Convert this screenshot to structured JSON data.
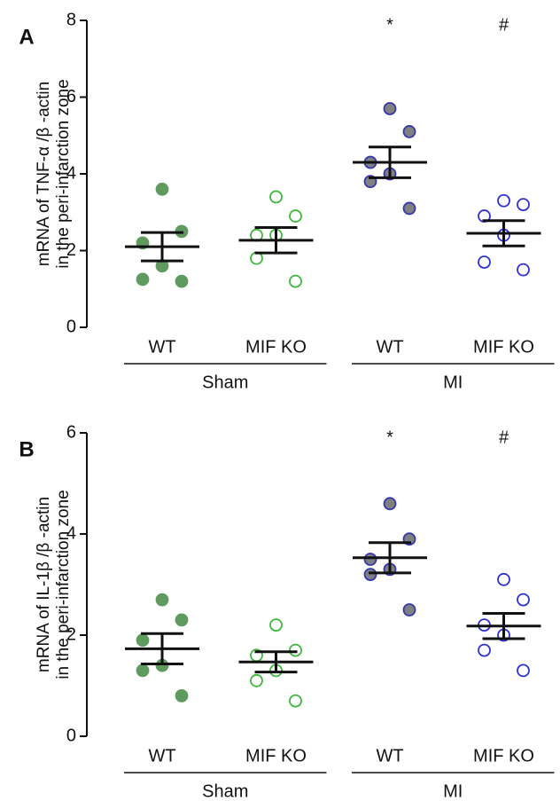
{
  "chart_data": [
    {
      "type": "dotplot",
      "panel": "A",
      "ylabel": [
        "mRNA of TNF-α /β -actin",
        "in the peri-infarction zone"
      ],
      "categories": [
        "WT",
        "MIF KO",
        "WT",
        "MIF KO"
      ],
      "group_labels": [
        "Sham",
        "MI"
      ],
      "annotations": [
        null,
        null,
        "*",
        "#"
      ],
      "points": [
        [
          3.6,
          2.5,
          2.2,
          1.6,
          1.25,
          1.2
        ],
        [
          3.4,
          2.9,
          2.4,
          2.4,
          1.8,
          1.2
        ],
        [
          5.7,
          5.1,
          4.3,
          4.0,
          3.8,
          3.1
        ],
        [
          3.3,
          3.2,
          2.9,
          2.4,
          1.7,
          1.5
        ]
      ],
      "means": [
        2.1,
        2.27,
        4.3,
        2.45
      ],
      "sem": [
        0.37,
        0.33,
        0.4,
        0.33
      ],
      "marker_fill": [
        "#5f9a5f",
        "none",
        "#808080",
        "none"
      ],
      "marker_stroke": [
        "#5f9a5f",
        "#3cb83c",
        "#3535b0",
        "#3030d0"
      ],
      "ylim": [
        0,
        8
      ],
      "yticks": [
        0,
        2,
        4,
        6,
        8
      ]
    },
    {
      "type": "dotplot",
      "panel": "B",
      "ylabel": [
        "mRNA of IL-1β /β -actin",
        "in the peri-infarction zone"
      ],
      "categories": [
        "WT",
        "MIF KO",
        "WT",
        "MIF KO"
      ],
      "group_labels": [
        "Sham",
        "MI"
      ],
      "annotations": [
        null,
        null,
        "*",
        "#"
      ],
      "points": [
        [
          2.7,
          2.3,
          1.9,
          1.4,
          1.3,
          0.8
        ],
        [
          2.2,
          1.7,
          1.6,
          1.3,
          1.1,
          0.7
        ],
        [
          4.6,
          3.9,
          3.5,
          3.3,
          3.2,
          2.5
        ],
        [
          3.1,
          2.7,
          2.2,
          2.0,
          1.7,
          1.3
        ]
      ],
      "means": [
        1.73,
        1.47,
        3.53,
        2.18
      ],
      "sem": [
        0.3,
        0.2,
        0.3,
        0.25
      ],
      "marker_fill": [
        "#5f9a5f",
        "none",
        "#808080",
        "none"
      ],
      "marker_stroke": [
        "#5f9a5f",
        "#3cb83c",
        "#3535b0",
        "#3030d0"
      ],
      "ylim": [
        0,
        6
      ],
      "yticks": [
        0,
        2,
        4,
        6
      ]
    }
  ]
}
